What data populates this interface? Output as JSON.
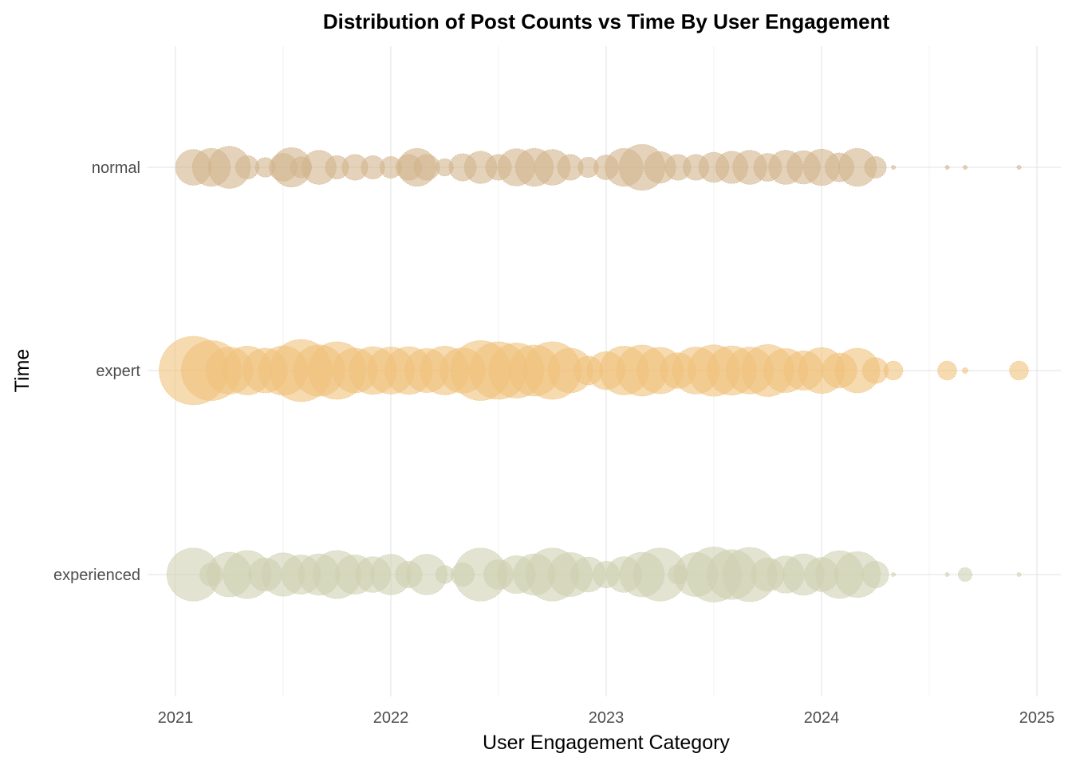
{
  "chart_data": {
    "type": "scatter",
    "title": "Distribution of Post Counts vs Time By User Engagement",
    "xlabel": "User Engagement Category",
    "ylabel": "Time",
    "x_ticks": [
      "2021",
      "2022",
      "2023",
      "2024",
      "2025"
    ],
    "x_range": [
      "2021-01-01",
      "2025-01-01"
    ],
    "categories": [
      "normal",
      "expert",
      "experienced"
    ],
    "grid": true,
    "legend": "none",
    "size_encoding": "post count",
    "series": [
      {
        "category": "normal",
        "color": "#d2b48c",
        "points": [
          {
            "x": "2021-02",
            "v": 460
          },
          {
            "x": "2021-03",
            "v": 520
          },
          {
            "x": "2021-04",
            "v": 640
          },
          {
            "x": "2021-05",
            "v": 200
          },
          {
            "x": "2021-06",
            "v": 140
          },
          {
            "x": "2021-07",
            "v": 280
          },
          {
            "x": "2021-07-15",
            "v": 560
          },
          {
            "x": "2021-08",
            "v": 160
          },
          {
            "x": "2021-09",
            "v": 420
          },
          {
            "x": "2021-10",
            "v": 200
          },
          {
            "x": "2021-11",
            "v": 240
          },
          {
            "x": "2021-12",
            "v": 200
          },
          {
            "x": "2022-01",
            "v": 170
          },
          {
            "x": "2022-02",
            "v": 240
          },
          {
            "x": "2022-02-15",
            "v": 520
          },
          {
            "x": "2022-03",
            "v": 240
          },
          {
            "x": "2022-04",
            "v": 110
          },
          {
            "x": "2022-05",
            "v": 270
          },
          {
            "x": "2022-06",
            "v": 380
          },
          {
            "x": "2022-07",
            "v": 240
          },
          {
            "x": "2022-08",
            "v": 500
          },
          {
            "x": "2022-09",
            "v": 520
          },
          {
            "x": "2022-10",
            "v": 460
          },
          {
            "x": "2022-11",
            "v": 240
          },
          {
            "x": "2022-12",
            "v": 150
          },
          {
            "x": "2023-01",
            "v": 220
          },
          {
            "x": "2023-02",
            "v": 520
          },
          {
            "x": "2023-03",
            "v": 760
          },
          {
            "x": "2023-04",
            "v": 360
          },
          {
            "x": "2023-05",
            "v": 240
          },
          {
            "x": "2023-06",
            "v": 240
          },
          {
            "x": "2023-07",
            "v": 330
          },
          {
            "x": "2023-08",
            "v": 380
          },
          {
            "x": "2023-09",
            "v": 420
          },
          {
            "x": "2023-10",
            "v": 280
          },
          {
            "x": "2023-11",
            "v": 420
          },
          {
            "x": "2023-12",
            "v": 400
          },
          {
            "x": "2024-01",
            "v": 480
          },
          {
            "x": "2024-02",
            "v": 300
          },
          {
            "x": "2024-03",
            "v": 520
          },
          {
            "x": "2024-04",
            "v": 170
          },
          {
            "x": "2024-05",
            "v": 6
          },
          {
            "x": "2024-08",
            "v": 6
          },
          {
            "x": "2024-09",
            "v": 6
          },
          {
            "x": "2024-12",
            "v": 6
          }
        ]
      },
      {
        "category": "expert",
        "color": "#f0c27b",
        "points": [
          {
            "x": "2021-02",
            "v": 1700
          },
          {
            "x": "2021-03",
            "v": 1300
          },
          {
            "x": "2021-04",
            "v": 800
          },
          {
            "x": "2021-05",
            "v": 860
          },
          {
            "x": "2021-06",
            "v": 720
          },
          {
            "x": "2021-07",
            "v": 880
          },
          {
            "x": "2021-08",
            "v": 1400
          },
          {
            "x": "2021-09",
            "v": 960
          },
          {
            "x": "2021-10",
            "v": 1200
          },
          {
            "x": "2021-11",
            "v": 720
          },
          {
            "x": "2021-12",
            "v": 820
          },
          {
            "x": "2022-01",
            "v": 800
          },
          {
            "x": "2022-02",
            "v": 820
          },
          {
            "x": "2022-03",
            "v": 700
          },
          {
            "x": "2022-04",
            "v": 860
          },
          {
            "x": "2022-05",
            "v": 740
          },
          {
            "x": "2022-06",
            "v": 1300
          },
          {
            "x": "2022-07",
            "v": 1200
          },
          {
            "x": "2022-08",
            "v": 1100
          },
          {
            "x": "2022-09",
            "v": 940
          },
          {
            "x": "2022-10",
            "v": 1200
          },
          {
            "x": "2022-11",
            "v": 720
          },
          {
            "x": "2022-12",
            "v": 300
          },
          {
            "x": "2023-01",
            "v": 520
          },
          {
            "x": "2023-02",
            "v": 860
          },
          {
            "x": "2023-03",
            "v": 940
          },
          {
            "x": "2023-04",
            "v": 780
          },
          {
            "x": "2023-05",
            "v": 460
          },
          {
            "x": "2023-06",
            "v": 800
          },
          {
            "x": "2023-07",
            "v": 960
          },
          {
            "x": "2023-08",
            "v": 880
          },
          {
            "x": "2023-09",
            "v": 800
          },
          {
            "x": "2023-10",
            "v": 980
          },
          {
            "x": "2023-11",
            "v": 700
          },
          {
            "x": "2023-12",
            "v": 560
          },
          {
            "x": "2024-01",
            "v": 760
          },
          {
            "x": "2024-02",
            "v": 440
          },
          {
            "x": "2024-03",
            "v": 720
          },
          {
            "x": "2024-04",
            "v": 240
          },
          {
            "x": "2024-05",
            "v": 130
          },
          {
            "x": "2024-08",
            "v": 130
          },
          {
            "x": "2024-09",
            "v": 12
          },
          {
            "x": "2024-12",
            "v": 130
          }
        ]
      },
      {
        "category": "experienced",
        "color": "#cfd1b0",
        "points": [
          {
            "x": "2021-02",
            "v": 1020
          },
          {
            "x": "2021-03",
            "v": 200
          },
          {
            "x": "2021-04",
            "v": 720
          },
          {
            "x": "2021-05",
            "v": 840
          },
          {
            "x": "2021-06",
            "v": 400
          },
          {
            "x": "2021-07",
            "v": 680
          },
          {
            "x": "2021-08",
            "v": 560
          },
          {
            "x": "2021-09",
            "v": 620
          },
          {
            "x": "2021-10",
            "v": 840
          },
          {
            "x": "2021-11",
            "v": 560
          },
          {
            "x": "2021-12",
            "v": 460
          },
          {
            "x": "2022-01",
            "v": 600
          },
          {
            "x": "2022-02",
            "v": 260
          },
          {
            "x": "2022-03",
            "v": 600
          },
          {
            "x": "2022-04",
            "v": 120
          },
          {
            "x": "2022-05",
            "v": 200
          },
          {
            "x": "2022-06",
            "v": 1020
          },
          {
            "x": "2022-07",
            "v": 320
          },
          {
            "x": "2022-08",
            "v": 520
          },
          {
            "x": "2022-09",
            "v": 620
          },
          {
            "x": "2022-10",
            "v": 1020
          },
          {
            "x": "2022-11",
            "v": 700
          },
          {
            "x": "2022-12",
            "v": 440
          },
          {
            "x": "2023-01",
            "v": 260
          },
          {
            "x": "2023-02",
            "v": 460
          },
          {
            "x": "2023-03",
            "v": 720
          },
          {
            "x": "2023-04",
            "v": 1020
          },
          {
            "x": "2023-05",
            "v": 140
          },
          {
            "x": "2023-06",
            "v": 700
          },
          {
            "x": "2023-07",
            "v": 1100
          },
          {
            "x": "2023-08",
            "v": 900
          },
          {
            "x": "2023-09",
            "v": 1060
          },
          {
            "x": "2023-10",
            "v": 400
          },
          {
            "x": "2023-11",
            "v": 500
          },
          {
            "x": "2023-12",
            "v": 620
          },
          {
            "x": "2024-01",
            "v": 420
          },
          {
            "x": "2024-02",
            "v": 820
          },
          {
            "x": "2024-03",
            "v": 760
          },
          {
            "x": "2024-04",
            "v": 260
          },
          {
            "x": "2024-05",
            "v": 6
          },
          {
            "x": "2024-08",
            "v": 6
          },
          {
            "x": "2024-09",
            "v": 70
          },
          {
            "x": "2024-12",
            "v": 6
          }
        ]
      }
    ]
  }
}
